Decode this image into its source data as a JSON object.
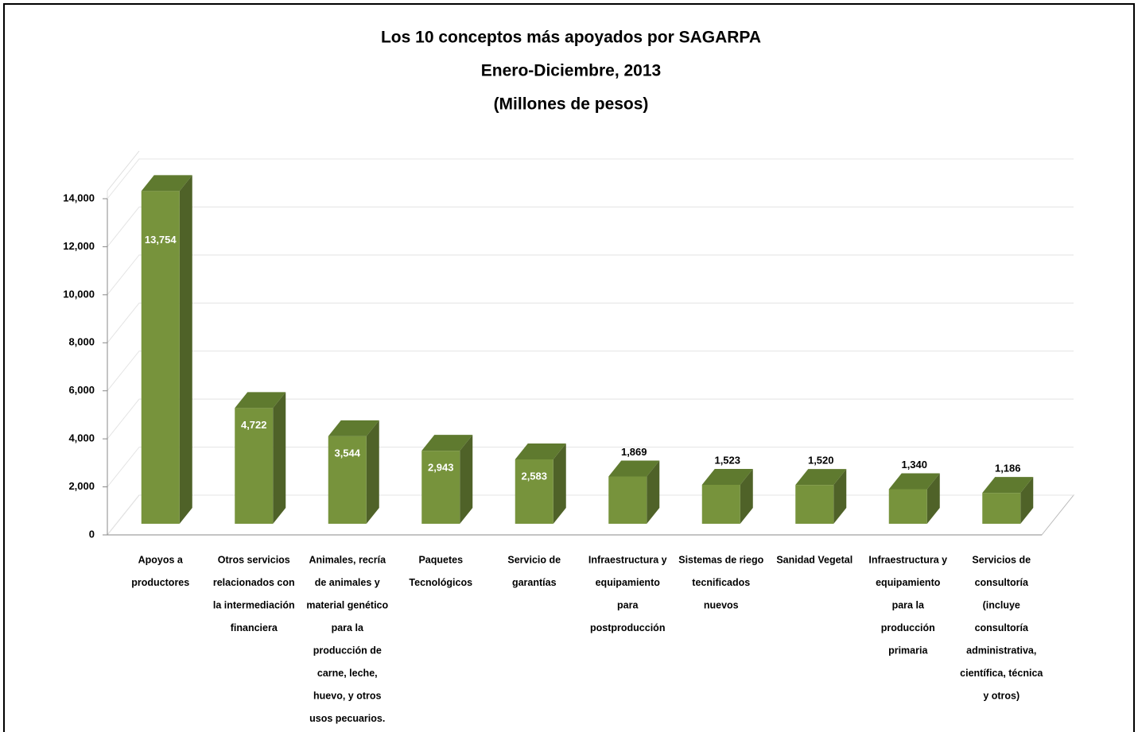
{
  "chart_data": {
    "type": "bar3d",
    "title": "Los 10 conceptos más apoyados por SAGARPA",
    "subtitle": [
      "Enero-Diciembre, 2013",
      "(Millones de pesos)"
    ],
    "categories": [
      [
        "Apoyos a",
        "productores"
      ],
      [
        "Otros servicios",
        "relacionados con",
        "la intermediación",
        "financiera"
      ],
      [
        "Animales, recría",
        "de animales y",
        "material genético",
        "para la",
        "producción de",
        "carne, leche,",
        "huevo, y otros",
        "usos pecuarios."
      ],
      [
        "Paquetes",
        "Tecnológicos"
      ],
      [
        "Servicio de",
        "garantías"
      ],
      [
        "Infraestructura y",
        "equipamiento",
        "para",
        "postproducción"
      ],
      [
        "Sistemas de riego",
        "tecnificados",
        "nuevos"
      ],
      [
        "Sanidad Vegetal"
      ],
      [
        "Infraestructura y",
        "equipamiento",
        "para la",
        "producción",
        "primaria"
      ],
      [
        "Servicios de",
        "consultoría",
        "(incluye",
        "consultoría",
        "administrativa,",
        "científica, técnica",
        "y otros)"
      ]
    ],
    "values": [
      13754,
      4722,
      3544,
      2943,
      2583,
      1869,
      1523,
      1520,
      1340,
      1186
    ],
    "value_labels": [
      "13,754",
      "4,722",
      "3,544",
      "2,943",
      "2,583",
      "1,869",
      "1,523",
      "1,520",
      "1,340",
      "1,186"
    ],
    "color": "#77933c",
    "ylim": [
      0,
      14000
    ],
    "yticks": [
      0,
      {
        "value": 2000,
        "label": "2,000"
      },
      {
        "value": 4000,
        "label": "4,000"
      },
      {
        "value": 6000,
        "label": "6,000"
      },
      {
        "value": 8000,
        "label": "8,000"
      },
      {
        "value": 10000,
        "label": "10,000"
      },
      {
        "value": 12000,
        "label": "12,000"
      },
      {
        "value": 14000,
        "label": "14,000"
      }
    ],
    "grid": true
  }
}
